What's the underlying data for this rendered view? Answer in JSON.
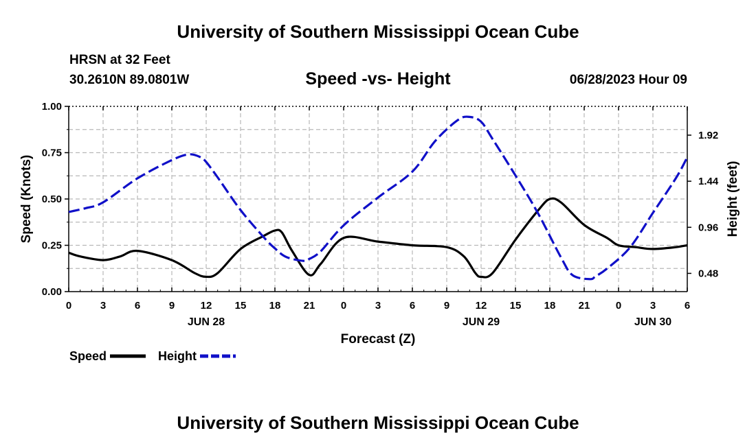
{
  "header": {
    "title": "University of Southern Mississippi Ocean Cube",
    "station": "HRSN at 32 Feet",
    "coords": "30.2610N  89.0801W",
    "chart_title": "Speed -vs- Height",
    "datetime": "06/28/2023 Hour 09"
  },
  "footer": {
    "title": "University of Southern Mississippi Ocean Cube"
  },
  "legend": {
    "speed_label": "Speed",
    "height_label": "Height"
  },
  "colors": {
    "speed": "#000000",
    "height": "#1010c8",
    "grid": "#b8b8b8"
  },
  "chart_data": {
    "type": "line",
    "title": "Speed -vs- Height",
    "xlabel": "Forecast (Z)",
    "ylabel": "Speed (Knots)",
    "y2label": "Height (feet)",
    "xlim": [
      0,
      54
    ],
    "ylim": [
      0,
      1
    ],
    "y2lim": [
      0.29,
      2.22
    ],
    "x_ticks": [
      0,
      3,
      6,
      9,
      12,
      15,
      18,
      21,
      24,
      27,
      30,
      33,
      36,
      39,
      42,
      45,
      48,
      51,
      54
    ],
    "x_tick_labels": [
      "0",
      "3",
      "6",
      "9",
      "12",
      "15",
      "18",
      "21",
      "0",
      "3",
      "6",
      "9",
      "12",
      "15",
      "18",
      "21",
      "0",
      "3",
      "6"
    ],
    "day_labels": [
      {
        "x": 12,
        "label": "JUN 28"
      },
      {
        "x": 36,
        "label": "JUN 29"
      },
      {
        "x": 51,
        "label": "JUN 30"
      }
    ],
    "y_ticks": [
      0,
      0.25,
      0.5,
      0.75,
      1.0
    ],
    "y_tick_labels": [
      "0.00",
      "0.25",
      "0.50",
      "0.75",
      "1.00"
    ],
    "y2_ticks": [
      0.48,
      0.96,
      1.44,
      1.92
    ],
    "y2_tick_labels": [
      "0.48",
      "0.96",
      "1.44",
      "1.92"
    ],
    "series": [
      {
        "name": "Speed",
        "axis": "left",
        "style": "solid",
        "x": [
          0,
          1,
          3,
          4.5,
          6,
          9,
          11,
          12,
          13,
          15,
          17,
          18,
          18.6,
          19.5,
          21,
          22,
          24,
          27,
          30,
          33,
          34.5,
          35.5,
          36,
          37,
          39,
          41,
          42,
          43,
          45,
          47,
          48,
          49.5,
          51,
          53,
          54
        ],
        "values": [
          0.21,
          0.19,
          0.17,
          0.19,
          0.22,
          0.17,
          0.1,
          0.08,
          0.1,
          0.23,
          0.3,
          0.33,
          0.32,
          0.22,
          0.09,
          0.15,
          0.29,
          0.27,
          0.25,
          0.24,
          0.19,
          0.1,
          0.08,
          0.1,
          0.28,
          0.44,
          0.5,
          0.48,
          0.36,
          0.29,
          0.25,
          0.24,
          0.23,
          0.24,
          0.25
        ]
      },
      {
        "name": "Height",
        "axis": "right",
        "style": "dashed",
        "x": [
          0,
          1.5,
          3,
          6,
          9,
          10.5,
          11.5,
          12,
          13,
          15,
          17,
          18,
          19,
          20.5,
          21,
          22,
          24,
          27,
          30,
          32,
          34,
          35,
          36,
          37,
          39,
          41,
          43,
          44,
          45.5,
          46,
          47,
          49,
          51,
          53,
          54
        ],
        "values": [
          1.12,
          1.16,
          1.22,
          1.47,
          1.66,
          1.72,
          1.69,
          1.64,
          1.48,
          1.14,
          0.86,
          0.74,
          0.65,
          0.61,
          0.63,
          0.71,
          0.98,
          1.27,
          1.54,
          1.86,
          2.08,
          2.11,
          2.06,
          1.88,
          1.5,
          1.1,
          0.64,
          0.46,
          0.42,
          0.45,
          0.53,
          0.75,
          1.11,
          1.47,
          1.69
        ]
      }
    ]
  }
}
